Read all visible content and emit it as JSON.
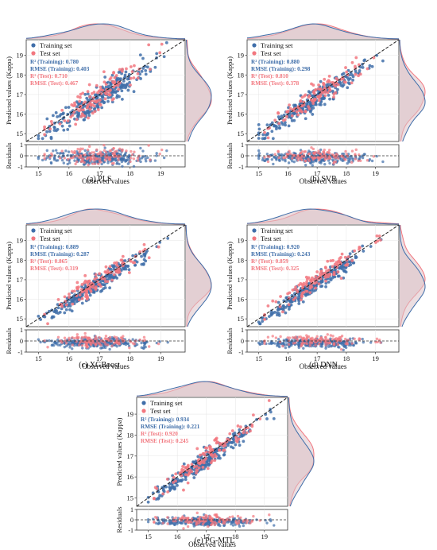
{
  "colors": {
    "training": "#3f6ea9",
    "test": "#f2777f",
    "diagonal": "#222222",
    "density_fill": "#dcc3c9"
  },
  "labels": {
    "xlabel": "Observed values",
    "ylabel": "Predicted values (Kappa)",
    "residual_label": "Residuals",
    "legend_training": "Training set",
    "legend_test": "Test set"
  },
  "chart_data": [
    {
      "type": "scatter",
      "caption": "(a) PLS",
      "xlim": [
        14.6,
        19.8
      ],
      "ylim": [
        14.6,
        19.8
      ],
      "xticks": [
        15,
        16,
        17,
        18,
        19
      ],
      "yticks": [
        15,
        16,
        17,
        18,
        19
      ],
      "residual_ylim": [
        -1,
        1
      ],
      "residual_yticks": [
        -1,
        0,
        1
      ],
      "metrics": [
        "R² (Training): 0.780",
        "RMSE (Training): 0.403",
        "R² (Test): 0.710",
        "RMSE (Test): 0.467"
      ],
      "noise": 0.36,
      "series": [
        {
          "name": "Training set",
          "role": "training"
        },
        {
          "name": "Test set",
          "role": "test"
        }
      ]
    },
    {
      "type": "scatter",
      "caption": "(b) SVR",
      "xlim": [
        14.6,
        19.8
      ],
      "ylim": [
        14.6,
        19.8
      ],
      "xticks": [
        15,
        16,
        17,
        18,
        19
      ],
      "yticks": [
        15,
        16,
        17,
        18,
        19
      ],
      "residual_ylim": [
        -1,
        1
      ],
      "residual_yticks": [
        -1,
        0,
        1
      ],
      "metrics": [
        "R² (Training): 0.880",
        "RMSE (Training): 0.298",
        "R² (Test): 0.810",
        "RMSE (Test): 0.378"
      ],
      "noise": 0.28,
      "series": [
        {
          "name": "Training set",
          "role": "training"
        },
        {
          "name": "Test set",
          "role": "test"
        }
      ]
    },
    {
      "type": "scatter",
      "caption": "(c) XGBoost",
      "xlim": [
        14.6,
        19.8
      ],
      "ylim": [
        14.6,
        19.8
      ],
      "xticks": [
        15,
        16,
        17,
        18,
        19
      ],
      "yticks": [
        15,
        16,
        17,
        18,
        19
      ],
      "residual_ylim": [
        -1,
        1
      ],
      "residual_yticks": [
        -1,
        0,
        1
      ],
      "metrics": [
        "R² (Training): 0.889",
        "RMSE (Training): 0.287",
        "R² (Test): 0.865",
        "RMSE (Test): 0.319"
      ],
      "noise": 0.25,
      "series": [
        {
          "name": "Training set",
          "role": "training"
        },
        {
          "name": "Test set",
          "role": "test"
        }
      ]
    },
    {
      "type": "scatter",
      "caption": "(d) DNN",
      "xlim": [
        14.6,
        19.8
      ],
      "ylim": [
        14.6,
        19.8
      ],
      "xticks": [
        15,
        16,
        17,
        18,
        19
      ],
      "yticks": [
        15,
        16,
        17,
        18,
        19
      ],
      "residual_ylim": [
        -1,
        1
      ],
      "residual_yticks": [
        -1,
        0,
        1
      ],
      "metrics": [
        "R² (Training): 0.920",
        "RMSE (Training): 0.243",
        "R² (Test): 0.859",
        "RMSE (Test): 0.325"
      ],
      "noise": 0.23,
      "series": [
        {
          "name": "Training set",
          "role": "training"
        },
        {
          "name": "Test set",
          "role": "test"
        }
      ]
    },
    {
      "type": "scatter",
      "caption": "(e) PG-MTL",
      "xlim": [
        14.6,
        19.8
      ],
      "ylim": [
        14.6,
        19.8
      ],
      "xticks": [
        15,
        16,
        17,
        18,
        19
      ],
      "yticks": [
        15,
        16,
        17,
        18,
        19
      ],
      "residual_ylim": [
        -1,
        1
      ],
      "residual_yticks": [
        -1,
        0,
        1
      ],
      "metrics": [
        "R² (Training): 0.934",
        "RMSE (Training): 0.221",
        "R² (Test): 0.920",
        "RMSE (Test): 0.245"
      ],
      "noise": 0.21,
      "series": [
        {
          "name": "Training set",
          "role": "training"
        },
        {
          "name": "Test set",
          "role": "test"
        }
      ]
    }
  ]
}
